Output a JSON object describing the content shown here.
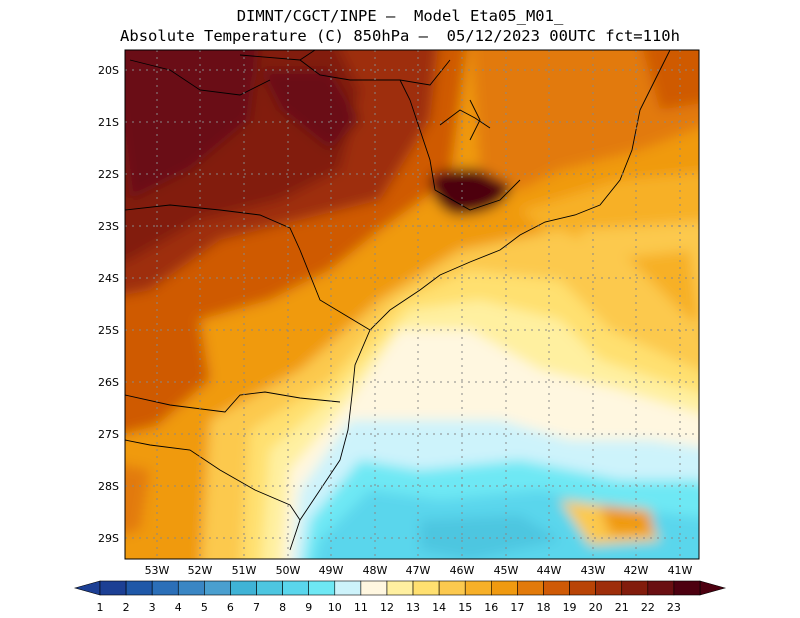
{
  "title_line1": "DIMNT/CGCT/INPE –  Model Eta05_M01_",
  "title_line2": "Absolute Temperature (C) 850hPa –  05/12/2023 00UTC fct=110h",
  "map": {
    "lat_labels": [
      "20S",
      "21S",
      "22S",
      "23S",
      "24S",
      "25S",
      "26S",
      "27S",
      "28S",
      "29S"
    ],
    "lon_labels": [
      "53W",
      "52W",
      "51W",
      "50W",
      "49W",
      "48W",
      "47W",
      "46W",
      "45W",
      "44W",
      "43W",
      "42W",
      "41W"
    ],
    "lon_range": [
      -53.7,
      -40.6
    ],
    "lat_range": [
      -29.4,
      -19.8
    ]
  },
  "colorbar": {
    "labels": [
      "1",
      "2",
      "3",
      "4",
      "5",
      "6",
      "7",
      "8",
      "9",
      "10",
      "11",
      "12",
      "13",
      "14",
      "15",
      "16",
      "17",
      "18",
      "19",
      "20",
      "21",
      "22",
      "23"
    ],
    "colors": [
      "#1c3f94",
      "#1f58a8",
      "#2b6fb8",
      "#3a86c4",
      "#4a9fcf",
      "#3fb3d6",
      "#4dc6e0",
      "#5ad6ec",
      "#6ee8f4",
      "#cdf3fb",
      "#fff7e0",
      "#fff0a0",
      "#ffe070",
      "#fcc94e",
      "#f7b028",
      "#f09a10",
      "#e27a0a",
      "#cf5a06",
      "#b94406",
      "#9e2e0a",
      "#821c0c",
      "#6a0f12",
      "#4d0010"
    ]
  },
  "icons": {
    "left_arrow": "colorbar-left-triangle",
    "right_arrow": "colorbar-right-triangle"
  }
}
